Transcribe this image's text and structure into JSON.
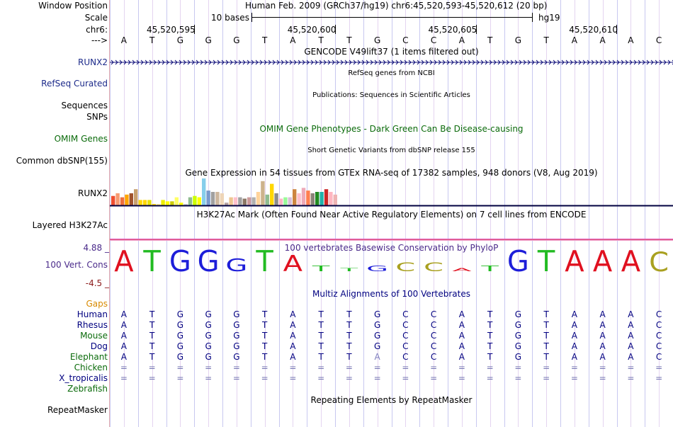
{
  "header": {
    "window_position_label": "Window Position",
    "window_position_value": "Human Feb. 2009 (GRCh37/hg19)   chr6:45,520,593-45,520,612 (20 bp)",
    "scale_label": "Scale",
    "scale_text": "10 bases",
    "scale_assembly": "hg19",
    "chrom_label": "chr6:",
    "arrow_label": "--->",
    "coords": [
      "45,520,595",
      "45,520,600",
      "45,520,605",
      "45,520,610"
    ]
  },
  "sequence": [
    "A",
    "T",
    "G",
    "G",
    "G",
    "T",
    "A",
    "T",
    "T",
    "G",
    "C",
    "C",
    "A",
    "T",
    "G",
    "T",
    "A",
    "A",
    "A",
    "C"
  ],
  "tracks": {
    "gencode_title": "GENCODE V49lift37 (1 items filtered out)",
    "runx2_label": "RUNX2",
    "refseq_title": "RefSeq genes from NCBI",
    "refseq_label": "RefSeq Curated",
    "publications_title": "Publications: Sequences in Scientific Articles",
    "sequences_label": "Sequences",
    "snps_label": "SNPs",
    "omim_title": "OMIM Gene Phenotypes - Dark Green Can Be Disease-causing",
    "omim_label": "OMIM Genes",
    "dbsnp_title": "Short Genetic Variants from dbSNP release 155",
    "dbsnp_label": "Common dbSNP(155)",
    "gtex_title": "Gene Expression in 54 tissues from GTEx RNA-seq of 17382 samples, 948 donors (V8, Aug 2019)",
    "gtex_label": "RUNX2",
    "h3k27ac_title": "H3K27Ac Mark (Often Found Near Active Regulatory Elements) on 7 cell lines from ENCODE",
    "h3k27ac_label": "Layered H3K27Ac",
    "cons_title": "100 vertebrates Basewise Conservation by PhyloP",
    "cons_max": "4.88 _",
    "cons_label": "100 Vert. Cons",
    "cons_min": "-4.5 _",
    "multiz_title": "Multiz Alignments of 100 Vertebrates",
    "gaps_label": "Gaps",
    "repeat_title": "Repeating Elements by RepeatMasker",
    "repeat_label": "RepeatMasker"
  },
  "gtex_bars": [
    {
      "color": "#ee4e31",
      "value": 0.35
    },
    {
      "color": "#f79a72",
      "value": 0.45
    },
    {
      "color": "#ee6f3c",
      "value": 0.3
    },
    {
      "color": "#ffa500",
      "value": 0.4
    },
    {
      "color": "#a0522d",
      "value": 0.45
    },
    {
      "color": "#c8a06e",
      "value": 0.6
    },
    {
      "color": "#ffd700",
      "value": 0.2
    },
    {
      "color": "#ffd700",
      "value": 0.2
    },
    {
      "color": "#e8e000",
      "value": 0.2
    },
    {
      "color": "#ffd700",
      "value": 0.05
    },
    {
      "color": "#ffec8b",
      "value": 0.05
    },
    {
      "color": "#eeee00",
      "value": 0.2
    },
    {
      "color": "#ffff00",
      "value": 0.15
    },
    {
      "color": "#cccc00",
      "value": 0.15
    },
    {
      "color": "#ffff66",
      "value": 0.3
    },
    {
      "color": "#ffff00",
      "value": 0.1
    },
    {
      "color": "#cccccc",
      "value": 0.05
    },
    {
      "color": "#8fbc8f",
      "value": 0.3
    },
    {
      "color": "#ccff00",
      "value": 0.35
    },
    {
      "color": "#ffff00",
      "value": 0.3
    },
    {
      "color": "#87ceeb",
      "value": 1.0
    },
    {
      "color": "#7a9acc",
      "value": 0.55
    },
    {
      "color": "#a0a0a0",
      "value": 0.5
    },
    {
      "color": "#cdb79e",
      "value": 0.5
    },
    {
      "color": "#eed5b7",
      "value": 0.45
    },
    {
      "color": "#b4a0a0",
      "value": 0.1
    },
    {
      "color": "#eec591",
      "value": 0.3
    },
    {
      "color": "#ffc0cb",
      "value": 0.3
    },
    {
      "color": "#a0a0a0",
      "value": 0.3
    },
    {
      "color": "#8b7765",
      "value": 0.25
    },
    {
      "color": "#cd9b9b",
      "value": 0.3
    },
    {
      "color": "#b0b0b0",
      "value": 0.3
    },
    {
      "color": "#ffd39b",
      "value": 0.5
    },
    {
      "color": "#cdb38b",
      "value": 0.9
    },
    {
      "color": "#8fbc8f",
      "value": 0.4
    },
    {
      "color": "#ffd700",
      "value": 0.8
    },
    {
      "color": "#8b8b8b",
      "value": 0.45
    },
    {
      "color": "#ffb5c5",
      "value": 0.25
    },
    {
      "color": "#98fb98",
      "value": 0.3
    },
    {
      "color": "#d8bfd8",
      "value": 0.3
    },
    {
      "color": "#cd853f",
      "value": 0.6
    },
    {
      "color": "#ffc0cb",
      "value": 0.45
    },
    {
      "color": "#eea9b8",
      "value": 0.65
    },
    {
      "color": "#ff7f50",
      "value": 0.55
    },
    {
      "color": "#8b8378",
      "value": 0.45
    },
    {
      "color": "#228b22",
      "value": 0.5
    },
    {
      "color": "#20b2aa",
      "value": 0.5
    },
    {
      "color": "#cd2626",
      "value": 0.6
    },
    {
      "color": "#ffb6c1",
      "value": 0.5
    },
    {
      "color": "#eeb4b4",
      "value": 0.4
    }
  ],
  "cons_letters": [
    {
      "base": "A",
      "color": "#e0101f",
      "score": 1.0
    },
    {
      "base": "T",
      "color": "#22bb22",
      "score": 1.0
    },
    {
      "base": "G",
      "color": "#1d1dd9",
      "score": 1.0
    },
    {
      "base": "G",
      "color": "#1d1dd9",
      "score": 1.0
    },
    {
      "base": "G",
      "color": "#1d1dd9",
      "score": 0.6
    },
    {
      "base": "T",
      "color": "#22bb22",
      "score": 1.0
    },
    {
      "base": "A",
      "color": "#e0101f",
      "score": 0.75
    },
    {
      "base": "T",
      "color": "#22bb22",
      "score": 0.25
    },
    {
      "base": "T",
      "color": "#22bb22",
      "score": 0.15
    },
    {
      "base": "G",
      "color": "#1d1dd9",
      "score": 0.25
    },
    {
      "base": "C",
      "color": "#a9a020",
      "score": 0.4
    },
    {
      "base": "C",
      "color": "#a9a020",
      "score": 0.4
    },
    {
      "base": "A",
      "color": "#e0101f",
      "score": 0.15
    },
    {
      "base": "T",
      "color": "#22bb22",
      "score": 0.25
    },
    {
      "base": "G",
      "color": "#1d1dd9",
      "score": 1.0
    },
    {
      "base": "T",
      "color": "#22bb22",
      "score": 1.0
    },
    {
      "base": "A",
      "color": "#e0101f",
      "score": 1.0
    },
    {
      "base": "A",
      "color": "#e0101f",
      "score": 1.0
    },
    {
      "base": "A",
      "color": "#e0101f",
      "score": 1.0
    },
    {
      "base": "C",
      "color": "#a9a020",
      "score": 0.9
    }
  ],
  "alignment": [
    {
      "species": "Human",
      "color": "#000080",
      "bases": [
        "A",
        "T",
        "G",
        "G",
        "G",
        "T",
        "A",
        "T",
        "T",
        "G",
        "C",
        "C",
        "A",
        "T",
        "G",
        "T",
        "A",
        "A",
        "A",
        "C"
      ]
    },
    {
      "species": "Rhesus",
      "color": "#000080",
      "bases": [
        "A",
        "T",
        "G",
        "G",
        "G",
        "T",
        "A",
        "T",
        "T",
        "G",
        "C",
        "C",
        "A",
        "T",
        "G",
        "T",
        "A",
        "A",
        "A",
        "C"
      ]
    },
    {
      "species": "Mouse",
      "color": "#0b6b0b",
      "bases": [
        "A",
        "T",
        "G",
        "G",
        "G",
        "T",
        "A",
        "T",
        "T",
        "G",
        "C",
        "C",
        "A",
        "T",
        "G",
        "T",
        "A",
        "A",
        "A",
        "C"
      ]
    },
    {
      "species": "Dog",
      "color": "#000080",
      "bases": [
        "A",
        "T",
        "G",
        "G",
        "G",
        "T",
        "A",
        "T",
        "T",
        "G",
        "C",
        "C",
        "A",
        "T",
        "G",
        "T",
        "A",
        "A",
        "A",
        "C"
      ]
    },
    {
      "species": "Elephant",
      "color": "#0b6b0b",
      "bases": [
        "A",
        "T",
        "G",
        "G",
        "G",
        "T",
        "A",
        "T",
        "T",
        "A",
        "C",
        "C",
        "A",
        "T",
        "G",
        "T",
        "A",
        "A",
        "A",
        "C"
      ]
    },
    {
      "species": "Chicken",
      "color": "#0b6b0b",
      "bases": [
        "=",
        "=",
        "=",
        "=",
        "=",
        "=",
        "=",
        "=",
        "=",
        "=",
        "=",
        "=",
        "=",
        "=",
        "=",
        "=",
        "=",
        "=",
        "=",
        "="
      ]
    },
    {
      "species": "X_tropicalis",
      "color": "#000080",
      "bases": [
        "=",
        "=",
        "=",
        "=",
        "=",
        "=",
        "=",
        "=",
        "=",
        "=",
        "=",
        "=",
        "=",
        "=",
        "=",
        "=",
        "=",
        "=",
        "=",
        "="
      ]
    },
    {
      "species": "Zebrafish",
      "color": "#0b6b0b",
      "bases": []
    }
  ]
}
